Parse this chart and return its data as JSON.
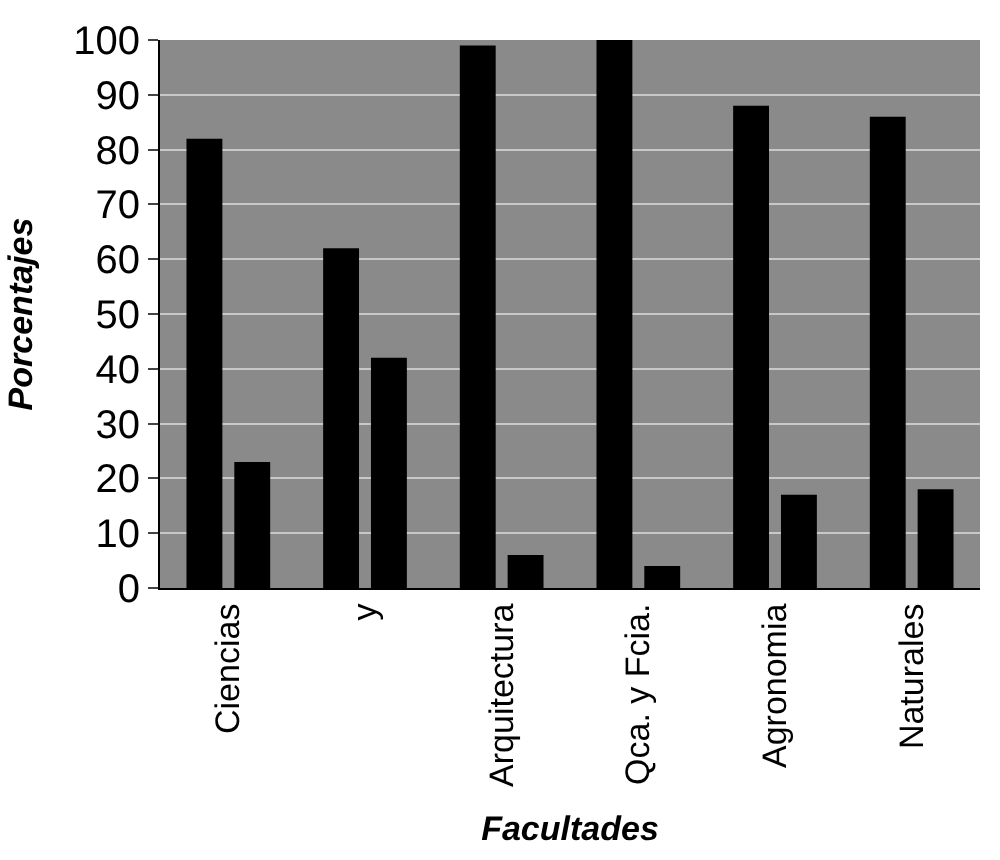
{
  "chart_data": {
    "type": "bar",
    "xlabel": "Facultades",
    "ylabel": "Porcentajes",
    "categories": [
      "Ciencias",
      "y",
      "Arquitectura",
      "Qca. y Fcia.",
      "Agronomia",
      "Naturales"
    ],
    "series": [
      {
        "color": "#000000",
        "values": [
          82,
          62,
          99,
          100,
          88,
          86
        ]
      },
      {
        "color": "#000000",
        "values": [
          23,
          42,
          6,
          4,
          17,
          18
        ]
      }
    ],
    "ylim": [
      0,
      100
    ],
    "yticks": [
      0,
      10,
      20,
      30,
      40,
      50,
      60,
      70,
      80,
      90,
      100
    ],
    "grid": "y"
  }
}
